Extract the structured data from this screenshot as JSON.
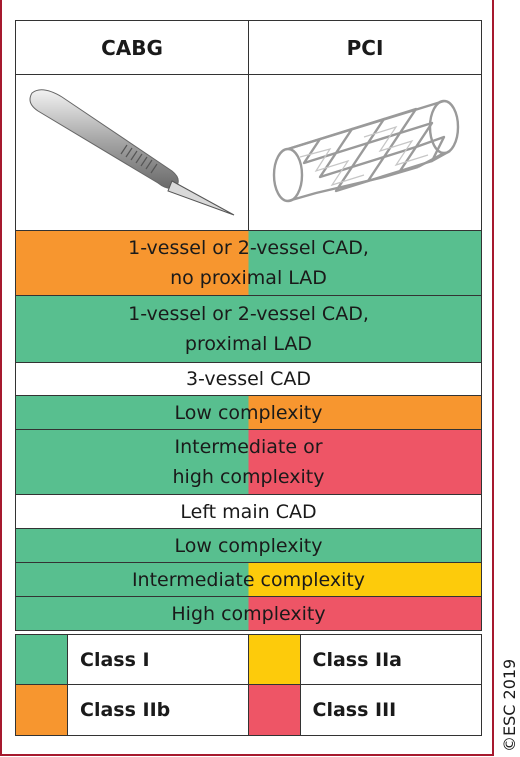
{
  "header": {
    "cabg": "CABG",
    "pci": "PCI"
  },
  "rows": [
    {
      "lines": [
        "1-vessel or 2-vessel CAD,",
        "no proximal LAD"
      ],
      "left": "class_iib",
      "right": "class_i"
    },
    {
      "lines": [
        "1-vessel or 2-vessel CAD,",
        "proximal LAD"
      ],
      "left": "class_i",
      "right": "class_i"
    },
    {
      "lines": [
        "3-vessel CAD"
      ],
      "left": "none",
      "right": "none"
    },
    {
      "lines": [
        "Low complexity"
      ],
      "left": "class_i",
      "right": "class_iib"
    },
    {
      "lines": [
        "Intermediate or",
        "high complexity"
      ],
      "left": "class_i",
      "right": "class_iii"
    },
    {
      "lines": [
        "Left main CAD"
      ],
      "left": "none",
      "right": "none"
    },
    {
      "lines": [
        "Low complexity"
      ],
      "left": "class_i",
      "right": "class_i"
    },
    {
      "lines": [
        "Intermediate complexity"
      ],
      "left": "class_i",
      "right": "class_iia"
    },
    {
      "lines": [
        "High complexity"
      ],
      "left": "class_i",
      "right": "class_iii"
    }
  ],
  "legend": [
    {
      "key": "class_i",
      "label": "Class I"
    },
    {
      "key": "class_iia",
      "label": "Class IIa"
    },
    {
      "key": "class_iib",
      "label": "Class IIb"
    },
    {
      "key": "class_iii",
      "label": "Class III"
    }
  ],
  "colors": {
    "class_i": "#58bf8f",
    "class_iia": "#fdcb0b",
    "class_iib": "#f7962f",
    "class_iii": "#ee5566",
    "none": "#ffffff"
  },
  "copyright": "©ESC 2019"
}
